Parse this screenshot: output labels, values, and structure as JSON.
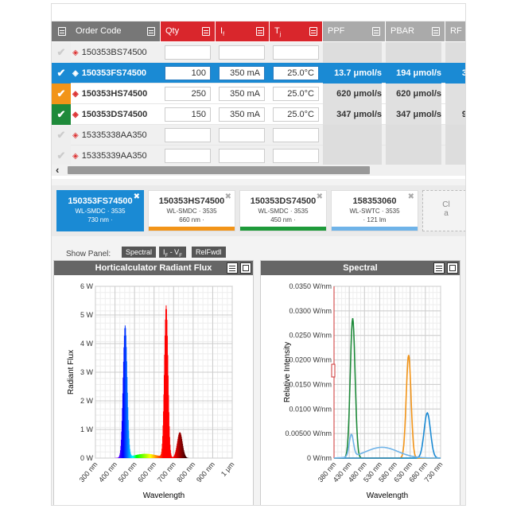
{
  "table": {
    "headers": [
      "Order Code",
      "Qty",
      "I",
      "T",
      "PPF",
      "PBAR",
      "RF"
    ],
    "header_subs": [
      "",
      "",
      "f",
      "j",
      "",
      "",
      ""
    ],
    "header_colors": [
      "#777777",
      "#d9262c",
      "#d9262c",
      "#d9262c",
      "#aaaaaa",
      "#aaaaaa",
      "#aaaaaa"
    ],
    "rows": [
      {
        "code": "150353BS74500",
        "qty": "",
        "if": "",
        "tj": "",
        "ppf": "",
        "pbar": "",
        "rf": "",
        "state": "none"
      },
      {
        "code": "150353FS74500",
        "qty": "100",
        "if": "350 mA",
        "tj": "25.0°C",
        "ppf": "13.7 μmol/s",
        "pbar": "194 μmol/s",
        "rf": "3",
        "state": "blue"
      },
      {
        "code": "150353HS74500",
        "qty": "250",
        "if": "350 mA",
        "tj": "25.0°C",
        "ppf": "620 μmol/s",
        "pbar": "620 μmol/s",
        "rf": "",
        "state": "orange"
      },
      {
        "code": "150353DS74500",
        "qty": "150",
        "if": "350 mA",
        "tj": "25.0°C",
        "ppf": "347 μmol/s",
        "pbar": "347 μmol/s",
        "rf": "9",
        "state": "green"
      },
      {
        "code": "15335338AA350",
        "qty": "",
        "if": "",
        "tj": "",
        "ppf": "",
        "pbar": "",
        "rf": "",
        "state": "none"
      },
      {
        "code": "15335339AA350",
        "qty": "",
        "if": "",
        "tj": "",
        "ppf": "",
        "pbar": "",
        "rf": "",
        "state": "none"
      }
    ]
  },
  "cards": [
    {
      "title": "150353FS74500",
      "line1": "WL-SMDC · 3535",
      "line2": "730 nm ·",
      "color": "#1a8ad4",
      "selected": true
    },
    {
      "title": "150353HS74500",
      "line1": "WL-SMDC · 3535",
      "line2": "660 nm ·",
      "color": "#f29418",
      "selected": false
    },
    {
      "title": "150353DS74500",
      "line1": "WL-SMDC · 3535",
      "line2": "450 nm ·",
      "color": "#1e9a3a",
      "selected": false
    },
    {
      "title": "158353060",
      "line1": "WL-SWTC · 3535",
      "line2": "· 121 lm",
      "color": "#6fb3e8",
      "selected": false
    }
  ],
  "add_card": {
    "text": "Cl",
    "text2": "a"
  },
  "show_panel": {
    "label": "Show Panel:",
    "buttons": [
      "Spectral",
      "If - VF",
      "RelFwdl"
    ]
  },
  "left_panel": {
    "title": "Horticalculator Radiant Flux"
  },
  "right_panel": {
    "title": "Spectral"
  },
  "chart_data": [
    {
      "type": "line",
      "title": "Horticalculator Radiant Flux",
      "xlabel": "Wavelength",
      "ylabel": "Radiant Flux",
      "x_ticks": [
        "300 nm",
        "400 nm",
        "500 nm",
        "600 nm",
        "700 nm",
        "800 nm",
        "900 nm",
        "1 μm"
      ],
      "y_ticks": [
        "0 W",
        "1 W",
        "2 W",
        "3 W",
        "4 W",
        "5 W",
        "6 W"
      ],
      "xlim": [
        300,
        1000
      ],
      "ylim": [
        0,
        6
      ],
      "grid": true,
      "series": [
        {
          "peak_nm": 450,
          "peak_w": 4.6,
          "width_nm": 10
        },
        {
          "peak_nm": 555,
          "peak_w": 0.15,
          "width_nm": 60
        },
        {
          "peak_nm": 660,
          "peak_w": 5.3,
          "width_nm": 9
        },
        {
          "peak_nm": 730,
          "peak_w": 0.9,
          "width_nm": 13
        }
      ]
    },
    {
      "type": "line",
      "title": "Spectral",
      "xlabel": "Wavelength",
      "ylabel": "Relative Intensity",
      "x_ticks": [
        "380 nm",
        "430 nm",
        "480 nm",
        "530 nm",
        "580 nm",
        "630 nm",
        "680 nm",
        "730 nm"
      ],
      "y_ticks": [
        "0 W/nm",
        "0.00500 W/nm",
        "0.0100 W/nm",
        "0.0150 W/nm",
        "0.0200 W/nm",
        "0.0250 W/nm",
        "0.0300 W/nm",
        "0.0350 W/nm"
      ],
      "xlim": [
        380,
        780
      ],
      "ylim": [
        0,
        0.035
      ],
      "grid": true,
      "series": [
        {
          "color": "#1e8a3a",
          "peaks": [
            [
              450,
              0.0285,
              9
            ]
          ]
        },
        {
          "color": "#f29418",
          "peaks": [
            [
              660,
              0.021,
              9
            ]
          ]
        },
        {
          "color": "#1a8ad4",
          "peaks": [
            [
              730,
              0.0092,
              12
            ]
          ]
        },
        {
          "color": "#6fb3e8",
          "peaks": [
            [
              445,
              0.0045,
              8
            ],
            [
              560,
              0.0022,
              60
            ]
          ]
        }
      ]
    }
  ]
}
